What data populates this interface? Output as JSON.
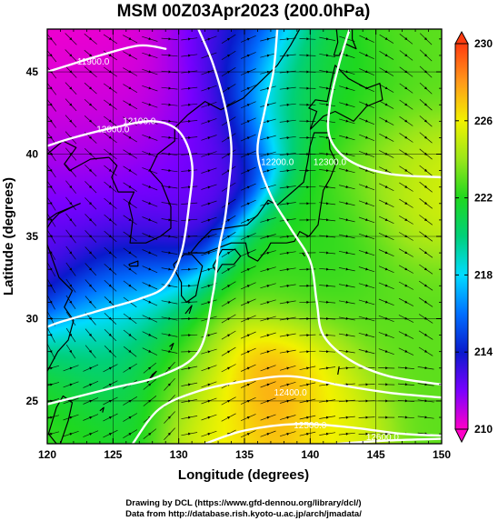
{
  "title": "MSM 00Z03Apr2023 (200.0hPa)",
  "footer": {
    "line1": "Drawing by DCL (https://www.gfd-dennou.org/library/dcl/)",
    "line2": "Data from http://database.rish.kyoto-u.ac.jp/arch/jmadata/"
  },
  "colors": {
    "background": "#ffffff",
    "frame": "#000000",
    "contour": "#ffffff",
    "streamline": "#000000",
    "grid": "#000000"
  },
  "chart_data": {
    "type": "heatmap",
    "title": "MSM 00Z03Apr2023 (200.0hPa)",
    "xlabel": "Longitude (degrees)",
    "ylabel": "Latitude  (degrees)",
    "xlim": [
      120,
      150
    ],
    "ylim": [
      22.4,
      47.6
    ],
    "x_ticks": [
      120,
      125,
      130,
      135,
      140,
      145,
      150
    ],
    "y_ticks": [
      25,
      30,
      35,
      40,
      45
    ],
    "grid": true,
    "colorbar": {
      "min": 210,
      "max": 230,
      "ticks": [
        210,
        214,
        218,
        222,
        226,
        230
      ],
      "stops": [
        {
          "value": 210,
          "color": "#ff00c8"
        },
        {
          "value": 212,
          "color": "#7a00ff"
        },
        {
          "value": 214,
          "color": "#0a1acc"
        },
        {
          "value": 216,
          "color": "#0070ff"
        },
        {
          "value": 218,
          "color": "#00dcff"
        },
        {
          "value": 220,
          "color": "#00d07a"
        },
        {
          "value": 222,
          "color": "#1fd81f"
        },
        {
          "value": 224,
          "color": "#9ae61a"
        },
        {
          "value": 226,
          "color": "#f2f200"
        },
        {
          "value": 228,
          "color": "#ff9a1a"
        },
        {
          "value": 230,
          "color": "#ff3c10"
        }
      ]
    },
    "temperature_field": {
      "unit": "K",
      "description_of_features": "approximate temperature centres read from the color field",
      "centers": [
        {
          "lon": 121,
          "lat": 47,
          "value": 210,
          "r": 6.5
        },
        {
          "lon": 127,
          "lat": 44,
          "value": 210.5,
          "r": 5
        },
        {
          "lon": 123,
          "lat": 40,
          "value": 211.5,
          "r": 4.5
        },
        {
          "lon": 120.5,
          "lat": 35,
          "value": 213,
          "r": 3.5
        },
        {
          "lon": 127,
          "lat": 36.5,
          "value": 213,
          "r": 3
        },
        {
          "lon": 131.5,
          "lat": 40.5,
          "value": 213,
          "r": 3
        },
        {
          "lon": 133.5,
          "lat": 47,
          "value": 214,
          "r": 3
        },
        {
          "lon": 126,
          "lat": 31.5,
          "value": 217.5,
          "r": 2.8
        },
        {
          "lon": 124,
          "lat": 27.5,
          "value": 220,
          "r": 3
        },
        {
          "lon": 121,
          "lat": 23.5,
          "value": 222.5,
          "r": 3
        },
        {
          "lon": 130,
          "lat": 27.5,
          "value": 223,
          "r": 3
        },
        {
          "lon": 137,
          "lat": 26.5,
          "value": 229,
          "r": 2.6
        },
        {
          "lon": 141,
          "lat": 25,
          "value": 226,
          "r": 2.5
        },
        {
          "lon": 133.5,
          "lat": 24.5,
          "value": 226,
          "r": 2.5
        },
        {
          "lon": 138,
          "lat": 32,
          "value": 222.5,
          "r": 3
        },
        {
          "lon": 147,
          "lat": 30,
          "value": 223,
          "r": 4
        },
        {
          "lon": 146,
          "lat": 39,
          "value": 224,
          "r": 3
        },
        {
          "lon": 148.5,
          "lat": 37.5,
          "value": 226,
          "r": 2.5
        },
        {
          "lon": 143,
          "lat": 44,
          "value": 222,
          "r": 3
        },
        {
          "lon": 138,
          "lat": 44,
          "value": 221,
          "r": 3
        },
        {
          "lon": 149,
          "lat": 47,
          "value": 223,
          "r": 3
        },
        {
          "lon": 142,
          "lat": 35.5,
          "value": 222,
          "r": 3
        }
      ]
    },
    "contours": [
      {
        "label": "11900.0",
        "label_at": {
          "lon": 123.5,
          "lat": 45.6
        },
        "points": [
          [
            120,
            45.0
          ],
          [
            122,
            45.5
          ],
          [
            124,
            46.0
          ],
          [
            127,
            46.6
          ],
          [
            129,
            46.4
          ]
        ]
      },
      {
        "label": "12000.0",
        "label_at": {
          "lon": 125,
          "lat": 41.5
        },
        "points": [
          [
            120,
            40.5
          ],
          [
            122,
            41.0
          ],
          [
            125,
            41.6
          ],
          [
            128,
            42.0
          ],
          [
            130,
            41.4
          ],
          [
            131,
            39.5
          ],
          [
            130.8,
            37.0
          ],
          [
            130.2,
            34.0
          ],
          [
            129.0,
            32.0
          ],
          [
            127.0,
            31.2
          ],
          [
            124.0,
            30.5
          ],
          [
            121.0,
            29.8
          ],
          [
            120,
            29.5
          ]
        ]
      },
      {
        "label": "12100.0",
        "label_at": {
          "lon": 127,
          "lat": 42
        },
        "points": [
          [
            131.5,
            47.6
          ],
          [
            132.6,
            45.5
          ],
          [
            133.5,
            43.0
          ],
          [
            134.0,
            40.5
          ],
          [
            133.8,
            38.0
          ],
          [
            133.5,
            36.0
          ],
          [
            133.0,
            34.0
          ],
          [
            132.6,
            31.5
          ],
          [
            131.5,
            28.0
          ],
          [
            128.5,
            26.5
          ],
          [
            125.0,
            25.8
          ],
          [
            121.0,
            25.0
          ],
          [
            120,
            24.8
          ]
        ]
      },
      {
        "label": "12200.0",
        "label_at": {
          "lon": 137.5,
          "lat": 39.5
        },
        "points": [
          [
            137.5,
            47.6
          ],
          [
            137.2,
            45.0
          ],
          [
            136.5,
            42.5
          ],
          [
            136.0,
            40.0
          ],
          [
            137.0,
            37.5
          ],
          [
            138.5,
            35.5
          ],
          [
            140.0,
            33.5
          ],
          [
            140.5,
            31.0
          ],
          [
            141.0,
            29.0
          ],
          [
            143.0,
            27.5
          ],
          [
            146.0,
            26.5
          ],
          [
            150,
            26.0
          ]
        ]
      },
      {
        "label": "12300.0",
        "label_at": {
          "lon": 141.5,
          "lat": 39.5
        },
        "points": [
          [
            143.0,
            47.6
          ],
          [
            142.2,
            45.5
          ],
          [
            141.5,
            43.0
          ],
          [
            141.5,
            41.0
          ],
          [
            143.0,
            39.6
          ],
          [
            146.0,
            38.8
          ],
          [
            150,
            38.6
          ]
        ]
      },
      {
        "label": "12400.0",
        "label_at": {
          "lon": 138.5,
          "lat": 25.5
        },
        "points": [
          [
            126.5,
            22.4
          ],
          [
            128.5,
            24.5
          ],
          [
            131.5,
            25.6
          ],
          [
            135.0,
            26.2
          ],
          [
            138.5,
            26.5
          ],
          [
            142.0,
            26.0
          ],
          [
            146.0,
            25.5
          ],
          [
            150,
            25.2
          ]
        ]
      },
      {
        "label": "12500.0",
        "label_at": {
          "lon": 140,
          "lat": 23.5
        },
        "points": [
          [
            132.0,
            22.4
          ],
          [
            135.0,
            23.2
          ],
          [
            139.0,
            23.6
          ],
          [
            143.0,
            23.4
          ],
          [
            147.0,
            23.0
          ],
          [
            150,
            22.9
          ]
        ]
      },
      {
        "label": "12600.0",
        "label_at": {
          "lon": 145.5,
          "lat": 22.8
        },
        "points": [
          [
            142.0,
            22.4
          ],
          [
            146.0,
            22.6
          ],
          [
            150,
            22.7
          ]
        ]
      }
    ],
    "streamlines": {
      "description": "wind direction field (degrees, math convention) sampled on a regular grid",
      "regime": "westerly jet wrapping around a trough near 125E, ridge near 140E"
    },
    "coastline_regions": [
      "China",
      "Korea",
      "Japan",
      "Sakhalin",
      "Taiwan"
    ]
  }
}
